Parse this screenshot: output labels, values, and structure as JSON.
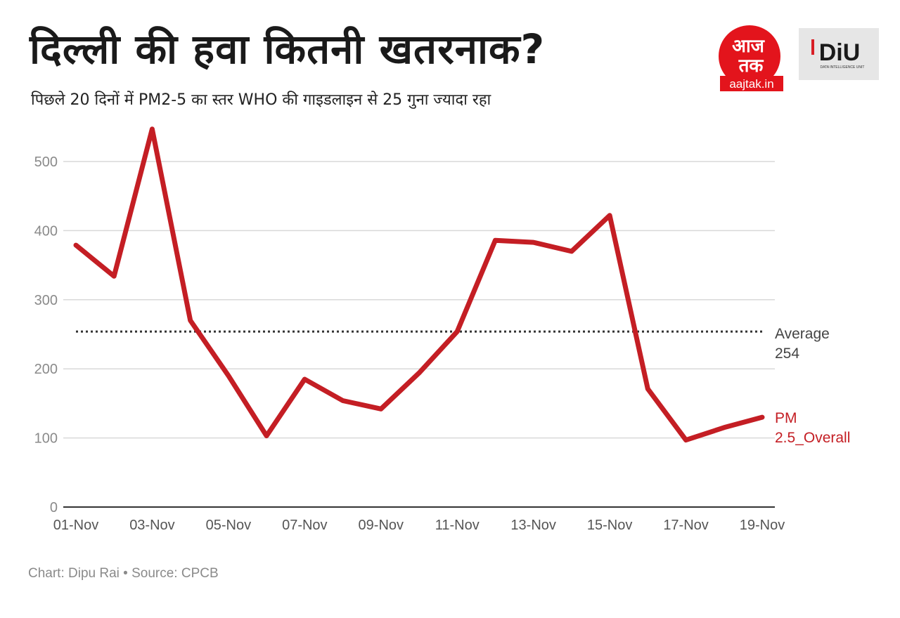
{
  "header": {
    "title": "दिल्ली की हवा कितनी खतरनाक?",
    "subtitle": "पिछले 20 दिनों में PM2-5 का स्तर WHO की गाइडलाइन से 25 गुना ज्यादा रहा"
  },
  "logos": {
    "aajtak_top": "आज",
    "aajtak_bottom": "तक",
    "aajtak_site": "aajtak.in",
    "diu_main": "DiU",
    "diu_sub": "DATA INTELLIGENCE UNIT"
  },
  "footer": {
    "credit": "Chart: Dipu Rai • Source: CPCB"
  },
  "colors": {
    "series": "#c41e24",
    "average": "#333333",
    "grid": "#d9d9d9",
    "axis": "#333333"
  },
  "chart_data": {
    "type": "line",
    "title": "दिल्ली की हवा कितनी खतरनाक?",
    "subtitle": "पिछले 20 दिनों में PM2-5 का स्तर WHO की गाइडलाइन से 25 गुना ज्यादा रहा",
    "categories": [
      "01-Nov",
      "02-Nov",
      "03-Nov",
      "04-Nov",
      "05-Nov",
      "06-Nov",
      "07-Nov",
      "08-Nov",
      "09-Nov",
      "10-Nov",
      "11-Nov",
      "12-Nov",
      "13-Nov",
      "14-Nov",
      "15-Nov",
      "16-Nov",
      "17-Nov",
      "18-Nov",
      "19-Nov"
    ],
    "x_tick_labels": [
      "01-Nov",
      "03-Nov",
      "05-Nov",
      "07-Nov",
      "09-Nov",
      "11-Nov",
      "13-Nov",
      "15-Nov",
      "17-Nov",
      "19-Nov"
    ],
    "series": [
      {
        "name": "PM 2.5_Overall",
        "values": [
          379,
          334,
          547,
          270,
          190,
          103,
          185,
          154,
          142,
          194,
          254,
          386,
          383,
          370,
          422,
          171,
          97,
          115,
          130
        ]
      }
    ],
    "reference_line": {
      "label": "Average",
      "value": 254,
      "value_text": "254",
      "style": "dotted"
    },
    "ylim": [
      0,
      560
    ],
    "y_ticks": [
      0,
      100,
      200,
      300,
      400,
      500
    ],
    "grid": true,
    "xlabel": "",
    "ylabel": ""
  }
}
